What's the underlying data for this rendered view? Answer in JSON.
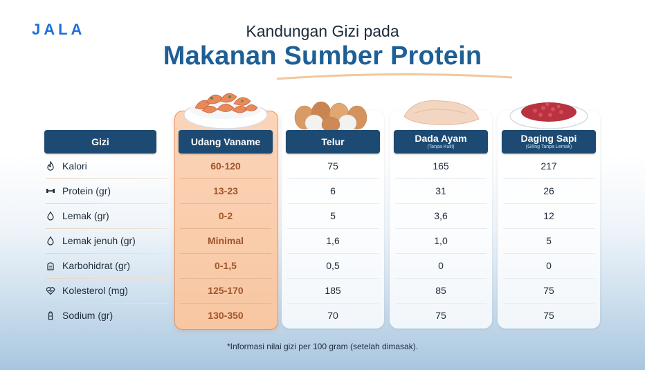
{
  "brand": "JALA",
  "subtitle": "Kandungan Gizi pada",
  "title": "Makanan Sumber Protein",
  "table": {
    "label_header": "Gizi",
    "columns": [
      {
        "label": "Udang Vaname",
        "sub": "",
        "highlight": true,
        "food_icon": "shrimp-bowl-icon"
      },
      {
        "label": "Telur",
        "sub": "",
        "highlight": false,
        "food_icon": "eggs-icon"
      },
      {
        "label": "Dada Ayam",
        "sub": "(Tanpa Kulit)",
        "highlight": false,
        "food_icon": "chicken-breast-icon"
      },
      {
        "label": "Daging Sapi",
        "sub": "(Giling Tanpa Lemak)",
        "highlight": false,
        "food_icon": "ground-beef-icon"
      }
    ],
    "rows": [
      {
        "label": "Kalori",
        "icon": "flame-icon",
        "values": [
          "60-120",
          "75",
          "165",
          "217"
        ]
      },
      {
        "label": "Protein (gr)",
        "icon": "dumbbell-icon",
        "values": [
          "13-23",
          "6",
          "31",
          "26"
        ]
      },
      {
        "label": "Lemak (gr)",
        "icon": "drop-icon",
        "values": [
          "0-2",
          "5",
          "3,6",
          "12"
        ]
      },
      {
        "label": "Lemak jenuh (gr)",
        "icon": "drop-icon",
        "values": [
          "Minimal",
          "1,6",
          "1,0",
          "5"
        ]
      },
      {
        "label": "Karbohidrat (gr)",
        "icon": "bread-icon",
        "values": [
          "0-1,5",
          "0,5",
          "0",
          "0"
        ]
      },
      {
        "label": "Kolesterol (mg)",
        "icon": "heart-pulse-icon",
        "values": [
          "125-170",
          "185",
          "85",
          "75"
        ]
      },
      {
        "label": "Sodium (gr)",
        "icon": "salt-shaker-icon",
        "values": [
          "130-350",
          "70",
          "75",
          "75"
        ]
      }
    ]
  },
  "footnote": "*Informasi nilai gizi per 100 gram (setelah dimasak).",
  "colors": {
    "header_bg": "#1d4a72",
    "highlight_bg": "#f8c6a2",
    "highlight_text": "#a0552a",
    "title": "#1d5f96",
    "brand": "#1e6fd9"
  }
}
